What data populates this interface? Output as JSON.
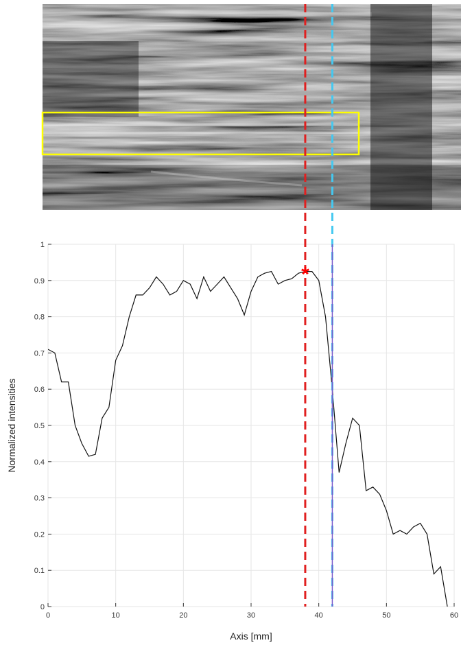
{
  "chart_data": {
    "type": "line",
    "title": "",
    "xlabel": "Axis [mm]",
    "ylabel": "Normalized intensities",
    "xlim": [
      0,
      60
    ],
    "ylim": [
      0,
      1
    ],
    "xticks": [
      0,
      10,
      20,
      30,
      40,
      50,
      60
    ],
    "yticks": [
      0,
      0.1,
      0.2,
      0.3,
      0.4,
      0.5,
      0.6,
      0.7,
      0.8,
      0.9,
      1
    ],
    "grid": true,
    "series": [
      {
        "color": "#111111",
        "x": [
          0,
          1,
          2,
          3,
          4,
          5,
          6,
          7,
          8,
          9,
          10,
          11,
          12,
          13,
          14,
          15,
          16,
          17,
          18,
          19,
          20,
          21,
          22,
          23,
          24,
          25,
          26,
          27,
          28,
          29,
          30,
          31,
          32,
          33,
          34,
          35,
          36,
          37,
          38,
          39,
          40,
          41,
          42,
          43,
          44,
          45,
          46,
          47,
          48,
          49,
          50,
          51,
          52,
          53,
          54,
          55,
          56,
          57,
          58,
          59
        ],
        "y": [
          0.71,
          0.7,
          0.62,
          0.62,
          0.5,
          0.45,
          0.415,
          0.42,
          0.52,
          0.55,
          0.68,
          0.72,
          0.8,
          0.86,
          0.86,
          0.88,
          0.91,
          0.89,
          0.86,
          0.87,
          0.9,
          0.89,
          0.85,
          0.91,
          0.87,
          0.89,
          0.91,
          0.88,
          0.85,
          0.805,
          0.87,
          0.91,
          0.92,
          0.925,
          0.89,
          0.9,
          0.905,
          0.92,
          0.925,
          0.925,
          0.9,
          0.8,
          0.6,
          0.37,
          0.45,
          0.52,
          0.5,
          0.32,
          0.33,
          0.31,
          0.265,
          0.2,
          0.21,
          0.2,
          0.22,
          0.23,
          0.2,
          0.09,
          0.11,
          0.0
        ]
      }
    ],
    "vlines": [
      {
        "x": 38,
        "color": "#e02020",
        "style": "dashed"
      },
      {
        "x": 42,
        "color": "#44c8f0",
        "style": "dashed"
      },
      {
        "x": 42,
        "color": "#7a5ccc",
        "style": "solid"
      }
    ],
    "marker": {
      "x": 38,
      "y": 0.925,
      "symbol": "*",
      "color": "#ff0000"
    }
  },
  "ultrasound_image": {
    "roi_color": "#ffff00"
  }
}
